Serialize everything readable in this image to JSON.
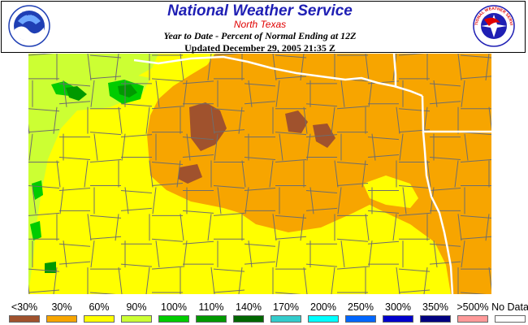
{
  "header": {
    "title": "National Weather Service",
    "subtitle": "North Texas",
    "period": "Year to Date - Percent of Normal Ending at 12Z",
    "updated": "Updated December 29, 2005 21:35 Z",
    "logo_left_text": "NOAA",
    "logo_right_text": "NATIONAL WEATHER SERVICE"
  },
  "map": {
    "background_color": "#f7a500",
    "county_line_color": "#6e6e6e",
    "state_line_color": "#ffffff"
  },
  "legend": {
    "items": [
      {
        "label": "<30%",
        "color": "#a0522d"
      },
      {
        "label": "30%",
        "color": "#f7a500"
      },
      {
        "label": "60%",
        "color": "#ffff00"
      },
      {
        "label": "90%",
        "color": "#ccff33"
      },
      {
        "label": "100%",
        "color": "#00cc00"
      },
      {
        "label": "110%",
        "color": "#009900"
      },
      {
        "label": "140%",
        "color": "#006600"
      },
      {
        "label": "170%",
        "color": "#33cccc"
      },
      {
        "label": "200%",
        "color": "#00ffff"
      },
      {
        "label": "250%",
        "color": "#0066ff"
      },
      {
        "label": "300%",
        "color": "#0000cc"
      },
      {
        "label": "350%",
        "color": "#000080"
      },
      {
        "label": ">500%",
        "color": "#ff9999"
      },
      {
        "label": "No Data",
        "color": "#ffffff"
      }
    ]
  }
}
